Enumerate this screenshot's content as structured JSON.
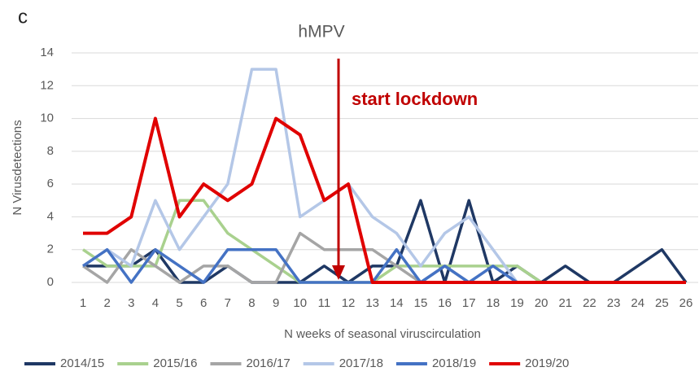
{
  "chart_data": {
    "type": "line",
    "panel_label": "c",
    "title": "hMPV",
    "xlabel": "N weeks of seasonal viruscirculation",
    "ylabel": "N Virusdetections",
    "annotation": "start lockdown",
    "categories": [
      "1",
      "2",
      "3",
      "4",
      "5",
      "6",
      "7",
      "8",
      "9",
      "10",
      "11",
      "12",
      "13",
      "14",
      "15",
      "16",
      "17",
      "18",
      "19",
      "20",
      "21",
      "22",
      "23",
      "24",
      "25",
      "26"
    ],
    "ylim": [
      0,
      14
    ],
    "yticks": [
      0,
      2,
      4,
      6,
      8,
      10,
      12,
      14
    ],
    "grid": true,
    "series": [
      {
        "name": "2014/15",
        "color": "#1f3864",
        "values": [
          1,
          1,
          1,
          2,
          0,
          0,
          1,
          0,
          0,
          0,
          1,
          0,
          1,
          1,
          5,
          0,
          5,
          0,
          1,
          0,
          1,
          0,
          0,
          1,
          2,
          0
        ]
      },
      {
        "name": "2015/16",
        "color": "#a9d18e",
        "values": [
          2,
          1,
          1,
          1,
          5,
          5,
          3,
          2,
          1,
          0,
          0,
          0,
          0,
          1,
          1,
          1,
          1,
          1,
          1,
          0,
          null,
          null,
          null,
          null,
          null,
          null
        ]
      },
      {
        "name": "2016/17",
        "color": "#a5a5a5",
        "values": [
          1,
          0,
          2,
          1,
          0,
          1,
          1,
          0,
          0,
          3,
          2,
          2,
          2,
          1,
          0,
          1,
          0,
          0,
          0,
          null,
          null,
          null,
          null,
          null,
          null,
          null
        ]
      },
      {
        "name": "2017/18",
        "color": "#b4c7e7",
        "values": [
          1,
          2,
          1,
          5,
          2,
          4,
          6,
          13,
          13,
          4,
          5,
          6,
          4,
          3,
          1,
          3,
          4,
          2,
          0,
          null,
          null,
          null,
          null,
          null,
          null,
          null
        ]
      },
      {
        "name": "2018/19",
        "color": "#4472c4",
        "values": [
          1,
          2,
          0,
          2,
          1,
          0,
          2,
          2,
          2,
          0,
          0,
          0,
          0,
          2,
          0,
          1,
          0,
          1,
          0,
          null,
          null,
          null,
          null,
          null,
          null,
          null
        ]
      },
      {
        "name": "2019/20",
        "color": "#e00000",
        "values": [
          3,
          3,
          4,
          10,
          4,
          6,
          5,
          6,
          10,
          9,
          5,
          6,
          0,
          0,
          0,
          0,
          0,
          0,
          0,
          0,
          0,
          0,
          0,
          0,
          0,
          0
        ]
      }
    ]
  }
}
